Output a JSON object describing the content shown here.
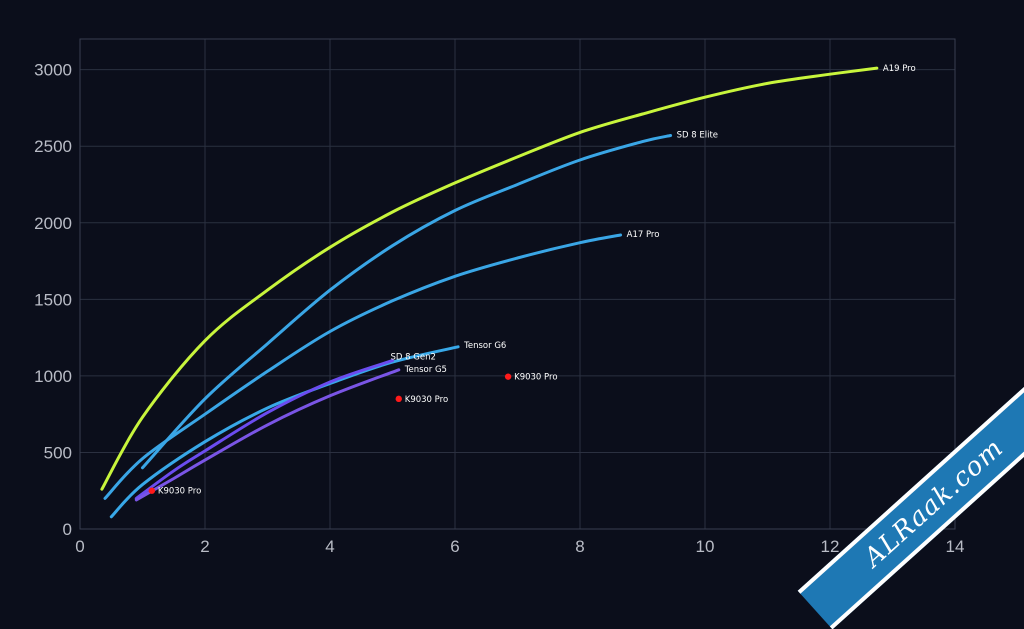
{
  "chart_data": {
    "type": "line",
    "title": "",
    "xlabel": "",
    "ylabel": "",
    "xlim": [
      0,
      14
    ],
    "ylim": [
      0,
      3200
    ],
    "x_ticks": [
      "0",
      "2",
      "4",
      "6",
      "8",
      "10",
      "12",
      "14"
    ],
    "y_ticks": [
      "0",
      "500",
      "1000",
      "1500",
      "2000",
      "2500",
      "3000"
    ],
    "grid": true,
    "series": [
      {
        "name": "A19 Pro",
        "color": "#c8f53c",
        "x": [
          0.35,
          1,
          2,
          3,
          4,
          5,
          6,
          7,
          8,
          9,
          10,
          11,
          12,
          12.75
        ],
        "y": [
          260,
          730,
          1230,
          1560,
          1840,
          2070,
          2260,
          2430,
          2590,
          2710,
          2820,
          2910,
          2970,
          3010
        ]
      },
      {
        "name": "SD 8 Elite",
        "color": "#3aa6e6",
        "x": [
          1.0,
          2,
          3,
          4,
          5,
          6,
          7,
          8,
          9,
          9.45
        ],
        "y": [
          400,
          850,
          1210,
          1560,
          1850,
          2080,
          2250,
          2410,
          2530,
          2570
        ]
      },
      {
        "name": "A17 Pro",
        "color": "#3aa6e6",
        "x": [
          0.4,
          1,
          2,
          3,
          4,
          5,
          6,
          7,
          8,
          8.65
        ],
        "y": [
          200,
          460,
          750,
          1030,
          1290,
          1490,
          1650,
          1770,
          1870,
          1920
        ]
      },
      {
        "name": "Tensor G6",
        "color": "#38a8e8",
        "x": [
          0.5,
          1,
          2,
          3,
          4,
          5,
          6.05
        ],
        "y": [
          80,
          290,
          570,
          790,
          950,
          1090,
          1190
        ]
      },
      {
        "name": "SD 8 Gen2",
        "color": "#6b4cf0",
        "x": [
          0.9,
          1.5,
          2,
          3,
          4,
          5
        ],
        "y": [
          200,
          380,
          510,
          760,
          960,
          1100
        ]
      },
      {
        "name": "Tensor G5",
        "color": "#7a55e6",
        "x": [
          0.9,
          1.5,
          2,
          3,
          4,
          5.1
        ],
        "y": [
          190,
          330,
          450,
          680,
          870,
          1040
        ]
      }
    ],
    "points": [
      {
        "name": "K9030 Pro",
        "x": 1.15,
        "y": 250,
        "color": "#ff1a1a"
      },
      {
        "name": "K9030 Pro",
        "x": 5.1,
        "y": 850,
        "color": "#ff1a1a"
      },
      {
        "name": "K9030 Pro",
        "x": 6.85,
        "y": 995,
        "color": "#ff1a1a"
      }
    ]
  },
  "watermark": {
    "text": "ALRaak.com",
    "color": "#1e78b4"
  }
}
